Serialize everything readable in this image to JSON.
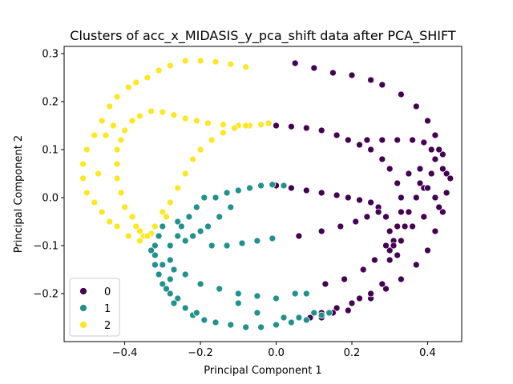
{
  "chart_data": {
    "type": "scatter",
    "title": "Clusters of acc_x_MIDASIS_y_pca_shift data after PCA_SHIFT",
    "xlabel": "Principal Component 1",
    "ylabel": "Principal Component 2",
    "xlim": [
      -0.56,
      0.49
    ],
    "ylim": [
      -0.3,
      0.315
    ],
    "xticks": [
      -0.4,
      -0.2,
      0.0,
      0.2,
      0.4
    ],
    "xtick_labels": [
      "−0.4",
      "−0.2",
      "0.0",
      "0.2",
      "0.4"
    ],
    "yticks": [
      -0.2,
      -0.1,
      0.0,
      0.1,
      0.2,
      0.3
    ],
    "ytick_labels": [
      "−0.2",
      "−0.1",
      "0.0",
      "0.1",
      "0.2",
      "0.3"
    ],
    "grid": false,
    "legend_position": "lower-left",
    "series": [
      {
        "name": "0",
        "color": "#440154",
        "points": [
          [
            0.05,
            0.28
          ],
          [
            0.1,
            0.27
          ],
          [
            0.15,
            0.26
          ],
          [
            0.2,
            0.255
          ],
          [
            0.25,
            0.245
          ],
          [
            0.28,
            0.235
          ],
          [
            0.33,
            0.215
          ],
          [
            0.37,
            0.19
          ],
          [
            0.4,
            0.16
          ],
          [
            0.42,
            0.13
          ],
          [
            0.44,
            0.09
          ],
          [
            0.45,
            0.05
          ],
          [
            0.45,
            0.01
          ],
          [
            0.44,
            -0.03
          ],
          [
            0.42,
            -0.07
          ],
          [
            0.4,
            -0.11
          ],
          [
            0.37,
            -0.14
          ],
          [
            0.33,
            -0.17
          ],
          [
            0.29,
            -0.19
          ],
          [
            0.25,
            -0.21
          ],
          [
            0.2,
            -0.22
          ],
          [
            0.16,
            -0.23
          ],
          [
            0.12,
            -0.24
          ],
          [
            0.09,
            -0.25
          ],
          [
            0.0,
            0.15
          ],
          [
            0.04,
            0.148
          ],
          [
            0.08,
            0.145
          ],
          [
            0.12,
            0.14
          ],
          [
            0.16,
            0.13
          ],
          [
            0.19,
            0.12
          ],
          [
            0.22,
            0.11
          ],
          [
            0.25,
            0.1
          ],
          [
            0.28,
            0.08
          ],
          [
            0.3,
            0.06
          ],
          [
            0.32,
            0.03
          ],
          [
            0.33,
            0.0
          ],
          [
            0.33,
            -0.03
          ],
          [
            0.32,
            -0.06
          ],
          [
            0.31,
            -0.09
          ],
          [
            0.3,
            -0.11
          ],
          [
            0.3,
            -0.13
          ],
          [
            0.24,
            0.12
          ],
          [
            0.28,
            0.12
          ],
          [
            0.32,
            0.12
          ],
          [
            0.36,
            0.12
          ],
          [
            0.39,
            0.115
          ],
          [
            0.41,
            0.1
          ],
          [
            0.42,
            0.08
          ],
          [
            0.41,
            0.05
          ],
          [
            0.39,
            0.02
          ],
          [
            0.37,
            0.0
          ],
          [
            0.35,
            -0.03
          ],
          [
            0.34,
            -0.06
          ],
          [
            0.0,
            0.025
          ],
          [
            0.04,
            0.02
          ],
          [
            0.08,
            0.015
          ],
          [
            0.12,
            0.01
          ],
          [
            0.16,
            0.005
          ],
          [
            0.19,
            0.0
          ],
          [
            0.22,
            -0.005
          ],
          [
            0.25,
            -0.01
          ],
          [
            0.27,
            -0.02
          ],
          [
            0.29,
            -0.04
          ],
          [
            0.3,
            -0.07
          ],
          [
            0.31,
            -0.1
          ],
          [
            0.32,
            -0.12
          ],
          [
            0.38,
            0.03
          ],
          [
            0.4,
            0.02
          ],
          [
            0.42,
            0.0
          ],
          [
            0.43,
            -0.02
          ],
          [
            0.06,
            -0.08
          ],
          [
            0.12,
            -0.07
          ],
          [
            0.17,
            -0.06
          ],
          [
            0.21,
            -0.05
          ],
          [
            0.24,
            -0.04
          ],
          [
            0.27,
            -0.03
          ],
          [
            0.13,
            -0.18
          ],
          [
            0.18,
            -0.17
          ],
          [
            0.23,
            -0.15
          ],
          [
            0.26,
            -0.13
          ],
          [
            0.29,
            -0.1
          ],
          [
            0.33,
            -0.09
          ],
          [
            0.36,
            -0.06
          ],
          [
            0.39,
            -0.04
          ],
          [
            0.12,
            -0.25
          ],
          [
            0.15,
            -0.24
          ],
          [
            0.19,
            -0.235
          ],
          [
            0.22,
            -0.21
          ],
          [
            0.25,
            -0.2
          ],
          [
            0.28,
            -0.18
          ],
          [
            0.35,
            0.05
          ],
          [
            0.38,
            0.06
          ],
          [
            0.43,
            0.1
          ],
          [
            0.46,
            0.04
          ],
          [
            0.44,
            0.06
          ]
        ]
      },
      {
        "name": "1",
        "color": "#21918c",
        "points": [
          [
            -0.3,
            -0.06
          ],
          [
            -0.31,
            -0.08
          ],
          [
            -0.32,
            -0.1
          ],
          [
            -0.32,
            -0.12
          ],
          [
            -0.32,
            -0.14
          ],
          [
            -0.31,
            -0.16
          ],
          [
            -0.3,
            -0.18
          ],
          [
            -0.29,
            -0.19
          ],
          [
            -0.28,
            -0.2
          ],
          [
            -0.26,
            -0.21
          ],
          [
            -0.24,
            -0.23
          ],
          [
            -0.22,
            -0.245
          ],
          [
            -0.19,
            -0.255
          ],
          [
            -0.16,
            -0.26
          ],
          [
            -0.12,
            -0.265
          ],
          [
            -0.08,
            -0.27
          ],
          [
            -0.04,
            -0.27
          ],
          [
            0.0,
            -0.265
          ],
          [
            0.04,
            -0.26
          ],
          [
            0.08,
            -0.255
          ],
          [
            0.12,
            -0.245
          ],
          [
            0.14,
            -0.24
          ],
          [
            -0.26,
            -0.05
          ],
          [
            -0.26,
            -0.08
          ],
          [
            -0.28,
            -0.1
          ],
          [
            -0.28,
            -0.13
          ],
          [
            -0.27,
            -0.15
          ],
          [
            -0.25,
            -0.06
          ],
          [
            -0.23,
            -0.04
          ],
          [
            -0.21,
            -0.02
          ],
          [
            -0.19,
            -0.0
          ],
          [
            -0.16,
            0.0
          ],
          [
            -0.13,
            0.01
          ],
          [
            -0.1,
            0.015
          ],
          [
            -0.07,
            0.02
          ],
          [
            -0.04,
            0.025
          ],
          [
            -0.01,
            0.027
          ],
          [
            0.02,
            0.025
          ],
          [
            -0.24,
            -0.09
          ],
          [
            -0.22,
            -0.08
          ],
          [
            -0.2,
            -0.07
          ],
          [
            -0.18,
            -0.06
          ],
          [
            -0.15,
            -0.04
          ],
          [
            -0.12,
            -0.02
          ],
          [
            -0.17,
            -0.1
          ],
          [
            -0.13,
            -0.1
          ],
          [
            -0.09,
            -0.095
          ],
          [
            -0.05,
            -0.09
          ],
          [
            -0.01,
            -0.085
          ],
          [
            -0.24,
            -0.16
          ],
          [
            -0.2,
            -0.18
          ],
          [
            -0.15,
            -0.19
          ],
          [
            -0.1,
            -0.2
          ],
          [
            -0.05,
            -0.205
          ],
          [
            0.0,
            -0.21
          ],
          [
            0.05,
            -0.2
          ],
          [
            0.08,
            -0.2
          ],
          [
            -0.27,
            -0.22
          ],
          [
            -0.21,
            -0.24
          ],
          [
            -0.1,
            -0.22
          ],
          [
            -0.05,
            -0.24
          ],
          [
            0.02,
            -0.25
          ],
          [
            0.06,
            -0.25
          ],
          [
            0.1,
            -0.24
          ],
          [
            -0.33,
            -0.11
          ],
          [
            -0.3,
            -0.14
          ],
          [
            -0.28,
            -0.17
          ]
        ]
      },
      {
        "name": "2",
        "color": "#fde725",
        "points": [
          [
            -0.24,
            0.285
          ],
          [
            -0.2,
            0.285
          ],
          [
            -0.16,
            0.283
          ],
          [
            -0.12,
            0.278
          ],
          [
            -0.08,
            0.272
          ],
          [
            -0.28,
            0.275
          ],
          [
            -0.31,
            0.265
          ],
          [
            -0.34,
            0.25
          ],
          [
            -0.37,
            0.24
          ],
          [
            -0.39,
            0.23
          ],
          [
            -0.42,
            0.21
          ],
          [
            -0.44,
            0.19
          ],
          [
            -0.46,
            0.16
          ],
          [
            -0.48,
            0.13
          ],
          [
            -0.5,
            0.1
          ],
          [
            -0.51,
            0.07
          ],
          [
            -0.51,
            0.04
          ],
          [
            -0.5,
            0.01
          ],
          [
            -0.48,
            -0.01
          ],
          [
            -0.46,
            -0.03
          ],
          [
            -0.44,
            -0.05
          ],
          [
            -0.42,
            -0.06
          ],
          [
            -0.39,
            -0.08
          ],
          [
            -0.36,
            -0.09
          ],
          [
            -0.33,
            0.18
          ],
          [
            -0.3,
            0.178
          ],
          [
            -0.27,
            0.172
          ],
          [
            -0.24,
            0.165
          ],
          [
            -0.21,
            0.16
          ],
          [
            -0.18,
            0.155
          ],
          [
            -0.14,
            0.152
          ],
          [
            -0.1,
            0.15
          ],
          [
            -0.07,
            0.15
          ],
          [
            -0.04,
            0.152
          ],
          [
            -0.02,
            0.155
          ],
          [
            -0.36,
            0.17
          ],
          [
            -0.38,
            0.16
          ],
          [
            -0.4,
            0.14
          ],
          [
            -0.41,
            0.12
          ],
          [
            -0.42,
            0.1
          ],
          [
            -0.42,
            0.07
          ],
          [
            -0.42,
            0.04
          ],
          [
            -0.41,
            0.01
          ],
          [
            -0.4,
            -0.02
          ],
          [
            -0.38,
            -0.04
          ],
          [
            -0.37,
            -0.06
          ],
          [
            -0.35,
            -0.08
          ],
          [
            -0.33,
            -0.075
          ],
          [
            -0.32,
            -0.06
          ],
          [
            -0.3,
            -0.03
          ],
          [
            -0.28,
            -0.01
          ],
          [
            -0.26,
            0.02
          ],
          [
            -0.24,
            0.05
          ],
          [
            -0.22,
            0.08
          ],
          [
            -0.2,
            0.1
          ],
          [
            -0.17,
            0.12
          ],
          [
            -0.14,
            0.135
          ],
          [
            -0.11,
            0.145
          ],
          [
            -0.08,
            0.15
          ],
          [
            -0.45,
            0.13
          ],
          [
            -0.43,
            0.15
          ],
          [
            -0.47,
            0.05
          ],
          [
            -0.34,
            -0.08
          ],
          [
            -0.36,
            -0.07
          ],
          [
            -0.29,
            -0.04
          ]
        ]
      }
    ]
  }
}
